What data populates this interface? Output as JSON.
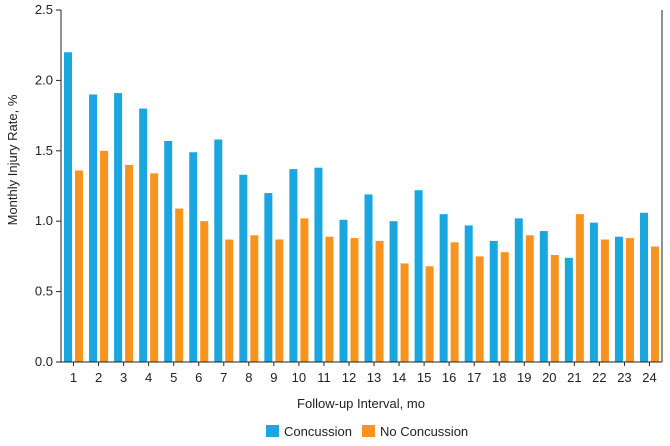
{
  "chart_data": {
    "type": "bar",
    "title": "",
    "xlabel": "Follow-up Interval, mo",
    "ylabel": "Monthly Injury Rate, %",
    "ylim": [
      0,
      2.5
    ],
    "yticks": [
      "0.0",
      "0.5",
      "1.0",
      "1.5",
      "2.0",
      "2.5"
    ],
    "categories": [
      "1",
      "2",
      "3",
      "4",
      "5",
      "6",
      "7",
      "8",
      "9",
      "10",
      "11",
      "12",
      "13",
      "14",
      "15",
      "16",
      "17",
      "18",
      "19",
      "20",
      "21",
      "22",
      "23",
      "24"
    ],
    "grid": false,
    "legend_position": "bottom",
    "series": [
      {
        "name": "Concussion",
        "color": "#1aa7e0",
        "values": [
          2.2,
          1.9,
          1.91,
          1.8,
          1.57,
          1.49,
          1.58,
          1.33,
          1.2,
          1.37,
          1.38,
          1.01,
          1.19,
          1.0,
          1.22,
          1.05,
          0.97,
          0.86,
          1.02,
          0.93,
          0.74,
          0.99,
          0.89,
          1.06
        ]
      },
      {
        "name": "No Concussion",
        "color": "#f7941d",
        "values": [
          1.36,
          1.5,
          1.4,
          1.34,
          1.09,
          1.0,
          0.87,
          0.9,
          0.87,
          1.02,
          0.89,
          0.88,
          0.86,
          0.7,
          0.68,
          0.85,
          0.75,
          0.78,
          0.9,
          0.76,
          1.05,
          0.87,
          0.88,
          0.82
        ]
      }
    ]
  }
}
